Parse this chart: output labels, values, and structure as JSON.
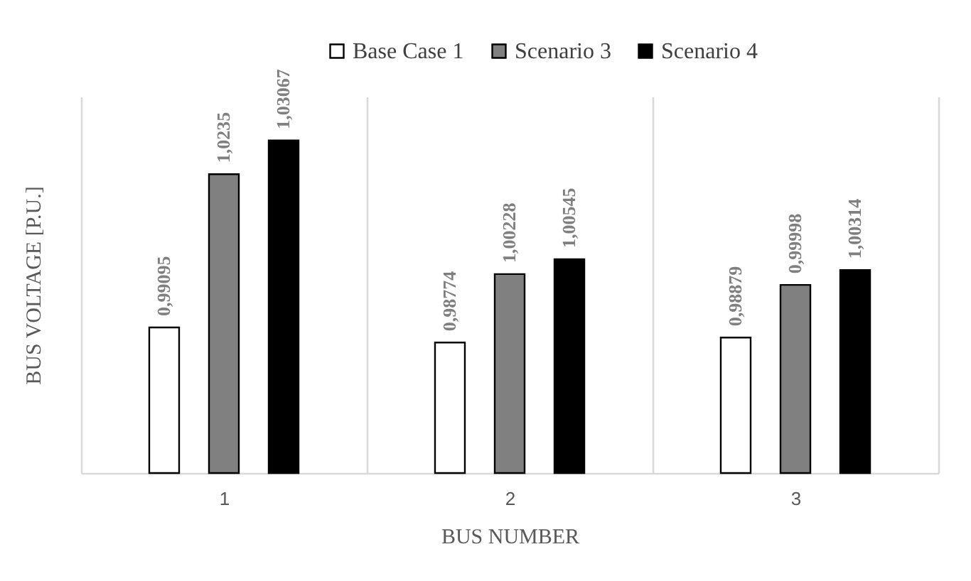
{
  "chart_data": {
    "type": "bar",
    "categories": [
      "1",
      "2",
      "3"
    ],
    "xlabel": "BUS NUMBER",
    "ylabel": "BUS VOLTAGE [P.U.]",
    "ylim": [
      0.96,
      1.04
    ],
    "tick_labels": "x",
    "grid": "x",
    "legend": "top",
    "series": [
      {
        "name": "Base Case 1",
        "color": "#ffffff",
        "values": [
          0.99095,
          0.98774,
          0.98879
        ],
        "value_labels": [
          "0,99095",
          "0,98774",
          "0,98879"
        ]
      },
      {
        "name": "Scenario 3",
        "color": "#808080",
        "values": [
          1.0235,
          1.00228,
          0.99998
        ],
        "value_labels": [
          "1,0235",
          "1,00228",
          "0,99998"
        ]
      },
      {
        "name": "Scenario 4",
        "color": "#000000",
        "values": [
          1.03067,
          1.00545,
          1.00314
        ],
        "value_labels": [
          "1,03067",
          "1,00545",
          "1,00314"
        ]
      }
    ]
  }
}
